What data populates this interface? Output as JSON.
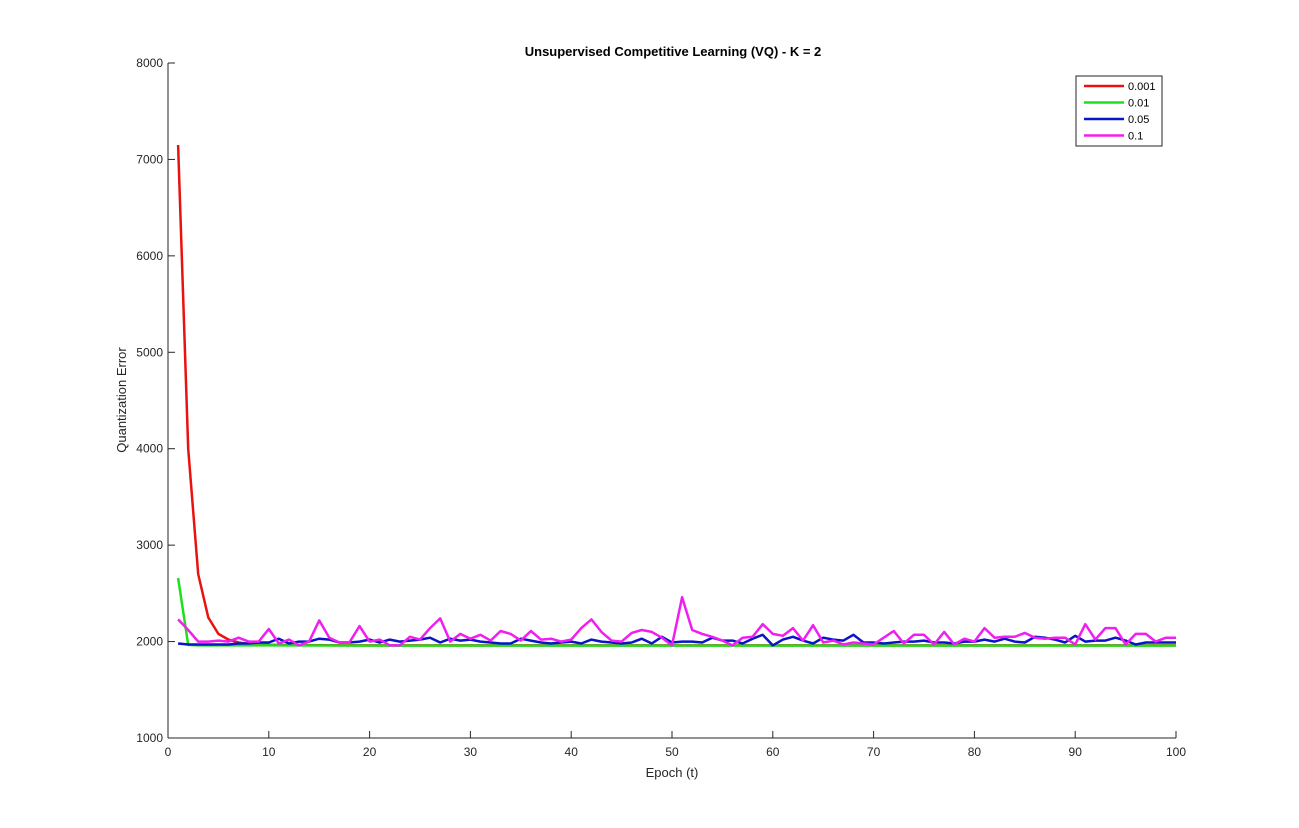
{
  "chart_data": {
    "type": "line",
    "title": "Unsupervised Competitive Learning (VQ) - K = 2",
    "xlabel": "Epoch (t)",
    "ylabel": "Quantization Error",
    "xlim": [
      0,
      100
    ],
    "ylim": [
      1000,
      8000
    ],
    "xticks": [
      "0",
      "10",
      "20",
      "30",
      "40",
      "50",
      "60",
      "70",
      "80",
      "90",
      "100"
    ],
    "yticks": [
      "1000",
      "2000",
      "3000",
      "4000",
      "5000",
      "6000",
      "7000",
      "8000"
    ],
    "grid": false,
    "legend_position": "top-right",
    "series": [
      {
        "name": "0.001",
        "color": "#e8120f",
        "x": [
          1,
          2,
          3,
          4,
          5,
          6,
          7,
          8,
          9,
          10,
          15,
          20,
          30,
          40,
          50,
          60,
          70,
          80,
          90,
          100
        ],
        "y": [
          7150,
          4000,
          2700,
          2250,
          2080,
          2020,
          1990,
          1975,
          1968,
          1965,
          1962,
          1960,
          1960,
          1960,
          1960,
          1960,
          1960,
          1960,
          1960,
          1960
        ]
      },
      {
        "name": "0.01",
        "color": "#1de01d",
        "x": [
          1,
          2,
          3,
          5,
          10,
          20,
          30,
          40,
          50,
          60,
          70,
          80,
          90,
          100
        ],
        "y": [
          2660,
          1965,
          1960,
          1960,
          1960,
          1958,
          1958,
          1958,
          1958,
          1958,
          1958,
          1958,
          1958,
          1958
        ]
      },
      {
        "name": "0.05",
        "color": "#0a14c8",
        "x": [
          1,
          2,
          3,
          4,
          5,
          6,
          7,
          8,
          9,
          10,
          11,
          12,
          13,
          14,
          15,
          16,
          17,
          18,
          19,
          20,
          21,
          22,
          23,
          24,
          25,
          26,
          27,
          28,
          29,
          30,
          31,
          32,
          33,
          34,
          35,
          36,
          37,
          38,
          39,
          40,
          41,
          42,
          43,
          44,
          45,
          46,
          47,
          48,
          49,
          50,
          51,
          52,
          53,
          54,
          55,
          56,
          57,
          58,
          59,
          60,
          61,
          62,
          63,
          64,
          65,
          66,
          67,
          68,
          69,
          70,
          71,
          72,
          73,
          74,
          75,
          76,
          77,
          78,
          79,
          80,
          81,
          82,
          83,
          84,
          85,
          86,
          87,
          88,
          89,
          90,
          91,
          92,
          93,
          94,
          95,
          96,
          97,
          98,
          99,
          100
        ],
        "y": [
          1980,
          1970,
          1970,
          1970,
          1970,
          1970,
          1980,
          1980,
          1990,
          1990,
          2030,
          1980,
          2000,
          2000,
          2030,
          2020,
          1990,
          1990,
          2000,
          2020,
          1990,
          2020,
          2000,
          2010,
          2020,
          2040,
          1990,
          2030,
          2010,
          2020,
          2000,
          1990,
          1980,
          1980,
          2030,
          2010,
          1990,
          1980,
          1990,
          2000,
          1980,
          2020,
          2000,
          1990,
          1980,
          1990,
          2030,
          1980,
          2050,
          1990,
          2000,
          2000,
          1990,
          2040,
          2010,
          2010,
          1980,
          2030,
          2070,
          1960,
          2020,
          2050,
          2010,
          1980,
          2040,
          2020,
          2010,
          2070,
          1990,
          1990,
          1980,
          1990,
          2000,
          2000,
          2010,
          1990,
          1990,
          1980,
          2000,
          2000,
          2020,
          2000,
          2030,
          2000,
          1990,
          2050,
          2040,
          2020,
          1990,
          2060,
          2000,
          2010,
          2010,
          2040,
          2010,
          1970,
          1990,
          1990,
          1990,
          1990
        ]
      },
      {
        "name": "0.1",
        "color": "#f01ef0",
        "x": [
          1,
          2,
          3,
          4,
          5,
          6,
          7,
          8,
          9,
          10,
          11,
          12,
          13,
          14,
          15,
          16,
          17,
          18,
          19,
          20,
          21,
          22,
          23,
          24,
          25,
          26,
          27,
          28,
          29,
          30,
          31,
          32,
          33,
          34,
          35,
          36,
          37,
          38,
          39,
          40,
          41,
          42,
          43,
          44,
          45,
          46,
          47,
          48,
          49,
          50,
          51,
          52,
          53,
          54,
          55,
          56,
          57,
          58,
          59,
          60,
          61,
          62,
          63,
          64,
          65,
          66,
          67,
          68,
          69,
          70,
          71,
          72,
          73,
          74,
          75,
          76,
          77,
          78,
          79,
          80,
          81,
          82,
          83,
          84,
          85,
          86,
          87,
          88,
          89,
          90,
          91,
          92,
          93,
          94,
          95,
          96,
          97,
          98,
          99,
          100
        ],
        "y": [
          2230,
          2120,
          2000,
          2000,
          2010,
          2000,
          2040,
          2000,
          2000,
          2130,
          1980,
          2020,
          1960,
          2000,
          2220,
          2040,
          1990,
          1990,
          2160,
          2000,
          2020,
          1960,
          1960,
          2050,
          2020,
          2140,
          2240,
          2000,
          2080,
          2030,
          2070,
          2010,
          2110,
          2080,
          2010,
          2110,
          2020,
          2030,
          2000,
          2020,
          2140,
          2230,
          2100,
          2010,
          2000,
          2090,
          2120,
          2100,
          2040,
          1960,
          2460,
          2120,
          2080,
          2050,
          2010,
          1960,
          2040,
          2050,
          2180,
          2080,
          2060,
          2140,
          2010,
          2170,
          1990,
          2010,
          1970,
          1990,
          1980,
          1970,
          2040,
          2110,
          1980,
          2070,
          2070,
          1970,
          2100,
          1970,
          2030,
          2000,
          2140,
          2040,
          2050,
          2050,
          2090,
          2040,
          2030,
          2040,
          2040,
          1970,
          2180,
          2020,
          2140,
          2140,
          1970,
          2080,
          2080,
          2000,
          2040,
          2040
        ]
      }
    ]
  }
}
